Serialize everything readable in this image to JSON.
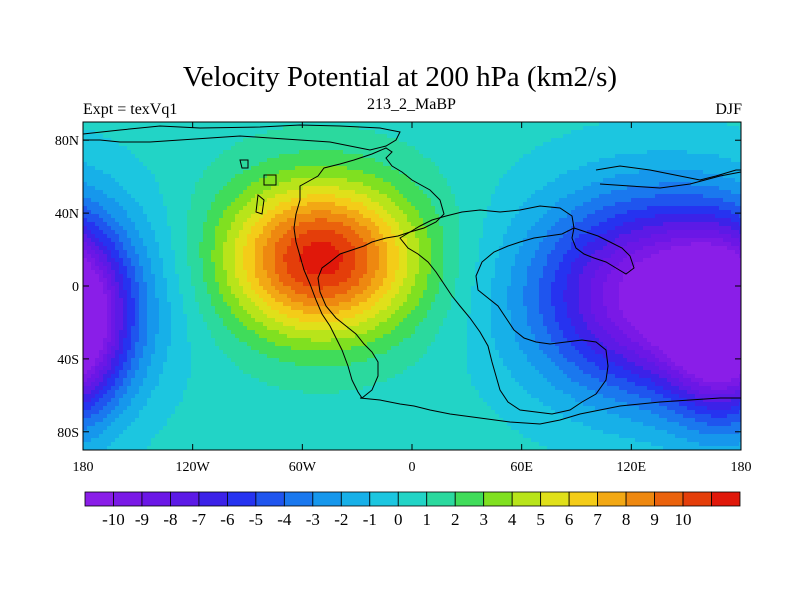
{
  "chart_data": {
    "type": "heatmap",
    "title": "Velocity Potential at 200 hPa (km2/s)",
    "left_string": "Expt = texVq1",
    "center_string": "213_2_MaBP",
    "right_string": "DJF",
    "x_ticks": [
      "180",
      "120W",
      "60W",
      "0",
      "60E",
      "120E",
      "180"
    ],
    "y_ticks": [
      "80N",
      "40N",
      "0",
      "40S",
      "80S"
    ],
    "xlim": [
      -180,
      180
    ],
    "ylim": [
      -90,
      90
    ],
    "x_tick_values": [
      -180,
      -120,
      -60,
      0,
      60,
      120,
      180
    ],
    "y_tick_values": [
      80,
      40,
      0,
      -40,
      -80
    ],
    "colorbar_labels": [
      "-10",
      "-9",
      "-8",
      "-7",
      "-6",
      "-5",
      "-4",
      "-3",
      "-2",
      "-1",
      "0",
      "1",
      "2",
      "3",
      "4",
      "5",
      "6",
      "7",
      "8",
      "9",
      "10"
    ],
    "colorbar_levels": [
      -10,
      -9,
      -8,
      -7,
      -6,
      -5,
      -4,
      -3,
      -2,
      -1,
      0,
      1,
      2,
      3,
      4,
      5,
      6,
      7,
      8,
      9,
      10
    ],
    "colorbar_colors": [
      "#8a1ee8",
      "#7a19e6",
      "#6b17e6",
      "#5c1ae6",
      "#3c22e8",
      "#2633f0",
      "#1f55ee",
      "#1a78ee",
      "#1697ec",
      "#17b0e8",
      "#1cc6e0",
      "#22d4c6",
      "#2bd99e",
      "#40dc5a",
      "#80e020",
      "#b8e41a",
      "#e0e01a",
      "#f4cc18",
      "#f2a814",
      "#ee8810",
      "#ea620c",
      "#e43e0a",
      "#e0180a"
    ],
    "field_centers": [
      {
        "lon": -50,
        "lat": 15,
        "value": 10.5,
        "width": 52,
        "height": 42
      },
      {
        "lon": 135,
        "lat": -5,
        "value": -11.0,
        "width": 68,
        "height": 55
      },
      {
        "lon": -188,
        "lat": -25,
        "value": -8.5,
        "width": 30,
        "height": 48
      }
    ]
  }
}
